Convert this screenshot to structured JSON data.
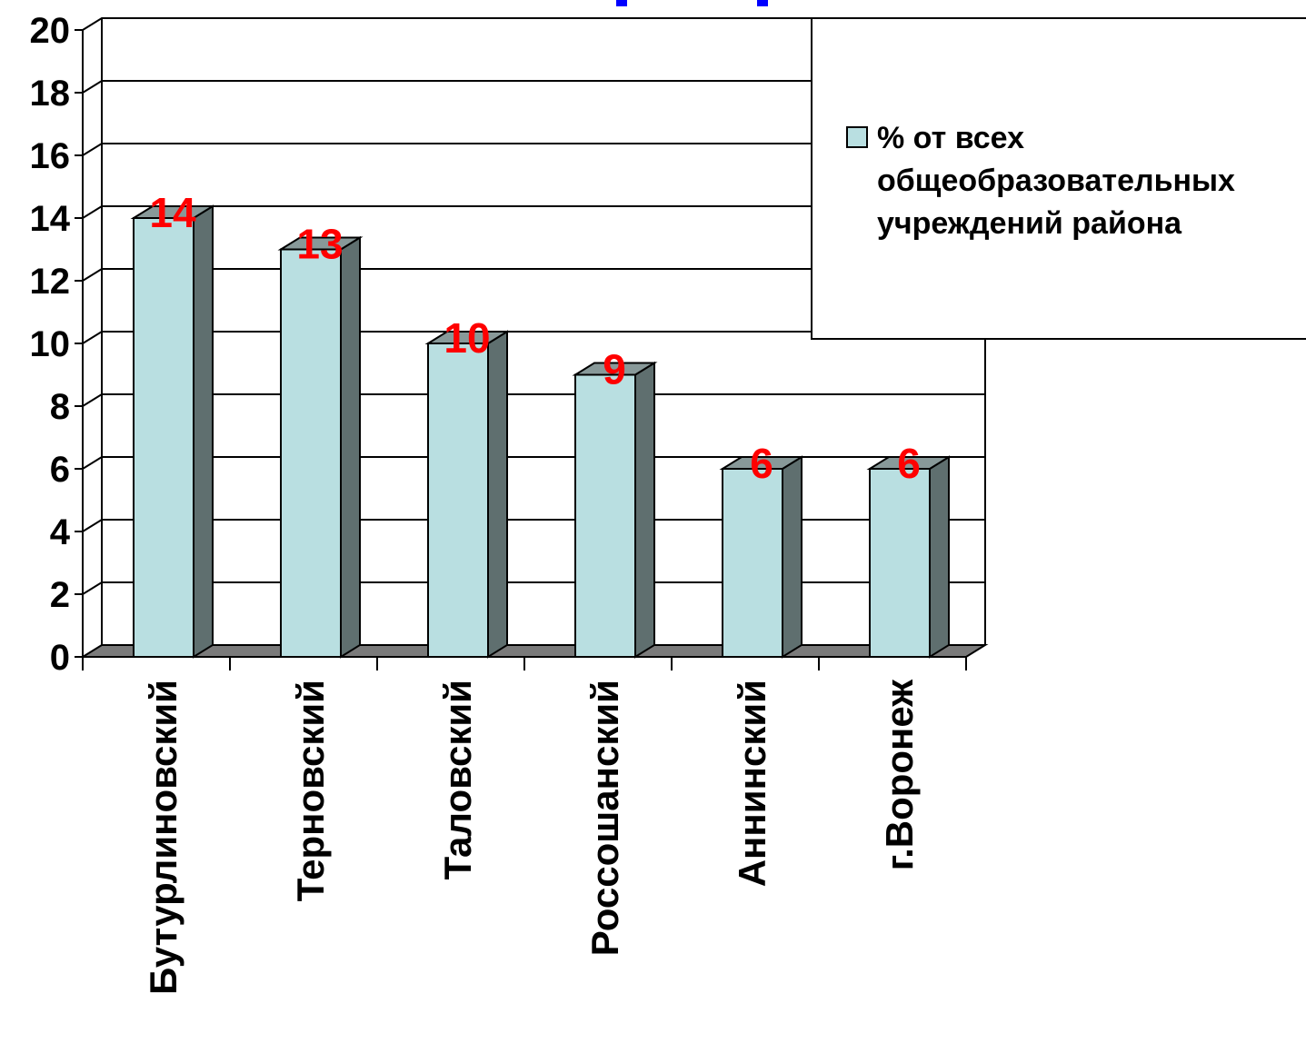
{
  "chart_data": {
    "type": "bar",
    "title": "",
    "xlabel": "",
    "ylabel": "",
    "categories": [
      "Бутурлиновский",
      "Терновский",
      "Таловский",
      "Россошанский",
      "Аннинский",
      "г.Воронеж"
    ],
    "series": [
      {
        "name": "% от всех общеобразовательных учреждений района",
        "values": [
          14,
          13,
          10,
          9,
          6,
          6
        ],
        "data_labels": [
          "14",
          "13",
          "10",
          "9",
          "6",
          "6"
        ]
      }
    ],
    "ylim": [
      0,
      20
    ],
    "y_ticks": [
      "0",
      "2",
      "4",
      "6",
      "8",
      "10",
      "12",
      "14",
      "16",
      "18",
      "20"
    ],
    "grid": true,
    "legend_position": "top-right",
    "legend_lines": [
      "% от всех",
      "общеобразовательных",
      "учреждений района"
    ],
    "colors": {
      "bar_front": "#b9dfe1",
      "bar_side": "#5f6f6f",
      "bar_top": "#889999",
      "floor": "#7a7a7a",
      "data_label": "#ff0000",
      "title_partial": "#0000ff"
    }
  }
}
